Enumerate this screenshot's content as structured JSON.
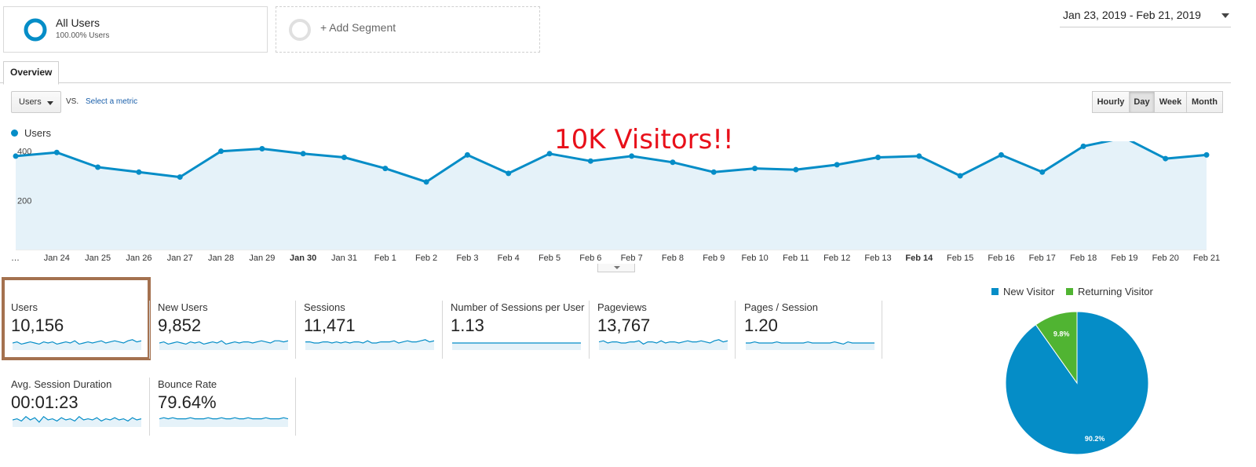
{
  "segments": {
    "all_users": {
      "title": "All Users",
      "subtitle": "100.00% Users"
    },
    "add_segment": {
      "label": "+ Add Segment"
    }
  },
  "date_range": "Jan 23, 2019 - Feb 21, 2019",
  "tabs": [
    {
      "label": "Overview"
    }
  ],
  "metric_selector": {
    "selected": "Users",
    "vs": "VS.",
    "select_metric": "Select a metric"
  },
  "granularity": {
    "options": [
      "Hourly",
      "Day",
      "Week",
      "Month"
    ],
    "selected": "Day"
  },
  "legend": {
    "series": "Users"
  },
  "annotation": "10K Visitors!!",
  "colors": {
    "primary": "#058dc7",
    "secondary": "#50b432",
    "area": "#e5f2f9",
    "annotation": "#e8101a",
    "highlight": "#a4714f"
  },
  "chart_data": {
    "type": "area",
    "series": [
      {
        "name": "Users",
        "values": [
          380,
          395,
          335,
          315,
          295,
          400,
          410,
          390,
          375,
          330,
          275,
          385,
          310,
          390,
          360,
          380,
          355,
          315,
          330,
          325,
          345,
          375,
          380,
          300,
          385,
          315,
          420,
          455,
          370,
          385
        ]
      }
    ],
    "x": [
      "…",
      "Jan 24",
      "Jan 25",
      "Jan 26",
      "Jan 27",
      "Jan 28",
      "Jan 29",
      "Jan 30",
      "Jan 31",
      "Feb 1",
      "Feb 2",
      "Feb 3",
      "Feb 4",
      "Feb 5",
      "Feb 6",
      "Feb 7",
      "Feb 8",
      "Feb 9",
      "Feb 10",
      "Feb 11",
      "Feb 12",
      "Feb 13",
      "Feb 14",
      "Feb 15",
      "Feb 16",
      "Feb 17",
      "Feb 18",
      "Feb 19",
      "Feb 20",
      "Feb 21"
    ],
    "yticks": [
      200,
      400,
      600
    ],
    "ylim": [
      0,
      600
    ],
    "grid": true
  },
  "metrics": [
    {
      "label": "Users",
      "value": "10,156",
      "spark": [
        5,
        6,
        4,
        5,
        6,
        5,
        4,
        6,
        5,
        6,
        4,
        5,
        6,
        5,
        7,
        4,
        5,
        6,
        5,
        6,
        7,
        5,
        6,
        7,
        6,
        5,
        7,
        8,
        6,
        7
      ]
    },
    {
      "label": "New Users",
      "value": "9,852",
      "spark": [
        5,
        6,
        4,
        5,
        6,
        5,
        4,
        6,
        5,
        6,
        4,
        5,
        6,
        5,
        7,
        4,
        5,
        6,
        5,
        6,
        6,
        5,
        6,
        7,
        6,
        5,
        7,
        7,
        6,
        7
      ]
    },
    {
      "label": "Sessions",
      "value": "11,471",
      "spark": [
        6,
        6,
        5,
        5,
        6,
        6,
        5,
        6,
        5,
        6,
        5,
        6,
        6,
        5,
        7,
        5,
        5,
        6,
        6,
        6,
        7,
        5,
        6,
        7,
        6,
        6,
        7,
        8,
        6,
        7
      ]
    },
    {
      "label": "Number of Sessions per User",
      "value": "1.13",
      "spark": [
        5,
        5,
        5,
        5,
        5,
        5,
        5,
        5,
        5,
        5,
        5,
        5,
        5,
        5,
        5,
        5,
        5,
        5,
        5,
        5,
        5,
        5,
        5,
        5,
        5,
        5,
        5,
        5,
        5,
        5
      ]
    },
    {
      "label": "Pageviews",
      "value": "13,767",
      "spark": [
        6,
        7,
        5,
        6,
        6,
        5,
        5,
        6,
        6,
        7,
        4,
        6,
        6,
        5,
        7,
        5,
        6,
        6,
        5,
        6,
        7,
        6,
        6,
        7,
        6,
        5,
        7,
        8,
        6,
        7
      ]
    },
    {
      "label": "Pages / Session",
      "value": "1.20",
      "spark": [
        5,
        5,
        6,
        5,
        5,
        5,
        5,
        6,
        5,
        5,
        5,
        5,
        5,
        5,
        6,
        5,
        5,
        5,
        5,
        5,
        6,
        5,
        4,
        6,
        5,
        5,
        5,
        5,
        5,
        5
      ]
    },
    {
      "label": "Avg. Session Duration",
      "value": "00:01:23",
      "spark": [
        5,
        6,
        4,
        8,
        5,
        7,
        3,
        8,
        5,
        6,
        4,
        7,
        5,
        6,
        4,
        8,
        5,
        6,
        5,
        7,
        4,
        6,
        5,
        7,
        5,
        6,
        4,
        7,
        5,
        6
      ]
    },
    {
      "label": "Bounce Rate",
      "value": "79.64%",
      "spark": [
        6,
        7,
        6,
        7,
        6,
        6,
        6,
        7,
        6,
        6,
        6,
        7,
        6,
        6,
        7,
        6,
        6,
        7,
        6,
        6,
        7,
        6,
        6,
        6,
        7,
        6,
        6,
        6,
        7,
        6
      ]
    }
  ],
  "pie": {
    "legend": [
      {
        "label": "New Visitor",
        "color": "#058dc7"
      },
      {
        "label": "Returning Visitor",
        "color": "#50b432"
      }
    ],
    "slices": [
      {
        "label": "New Visitor",
        "value": 90.2,
        "display": "90.2%",
        "color": "#058dc7"
      },
      {
        "label": "Returning Visitor",
        "value": 9.8,
        "display": "9.8%",
        "color": "#50b432"
      }
    ]
  }
}
